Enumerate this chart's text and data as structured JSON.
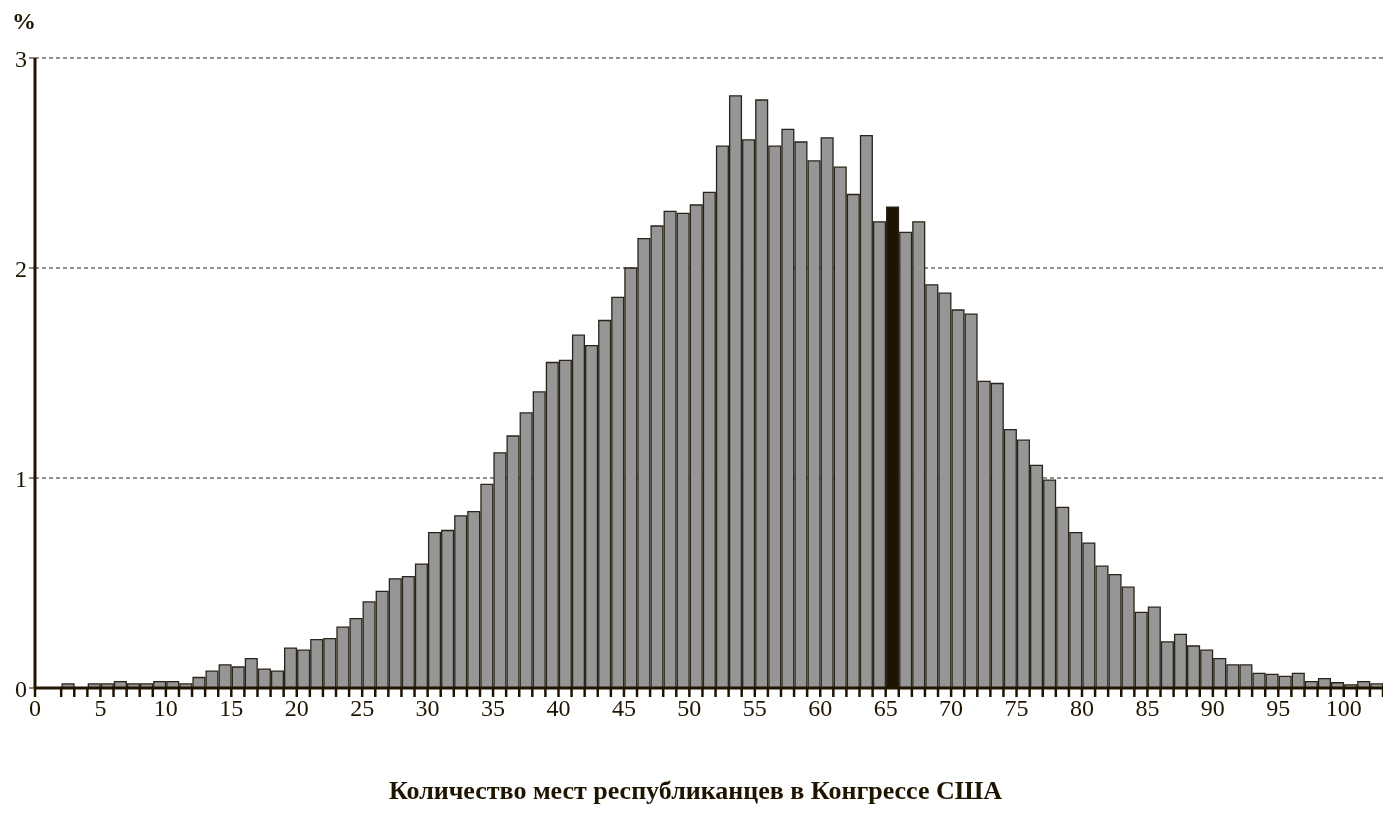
{
  "chart_data": {
    "type": "histogram",
    "xlabel": "Количество мест республиканцев в Конгрессе США",
    "ylabel": "%",
    "bins": [
      2,
      3,
      4,
      5,
      6,
      7,
      8,
      9,
      10,
      11,
      12,
      13,
      14,
      15,
      16,
      17,
      18,
      19,
      20,
      21,
      22,
      23,
      24,
      25,
      26,
      27,
      28,
      29,
      30,
      31,
      32,
      33,
      34,
      35,
      36,
      37,
      38,
      39,
      40,
      41,
      42,
      43,
      44,
      45,
      46,
      47,
      48,
      49,
      50,
      51,
      52,
      53,
      54,
      55,
      56,
      57,
      58,
      59,
      60,
      61,
      62,
      63,
      64,
      65,
      66,
      67,
      68,
      69,
      70,
      71,
      72,
      73,
      74,
      75,
      76,
      77,
      78,
      79,
      80,
      81,
      82,
      83,
      84,
      85,
      86,
      87,
      88,
      89,
      90,
      91,
      92,
      93,
      94,
      95,
      96,
      97,
      98,
      99,
      100,
      101,
      102,
      103
    ],
    "values": [
      0.02,
      0,
      0.02,
      0.02,
      0.03,
      0.02,
      0.02,
      0.03,
      0.03,
      0.02,
      0.05,
      0.08,
      0.11,
      0.1,
      0.14,
      0.09,
      0.08,
      0.19,
      0.18,
      0.23,
      0.235,
      0.29,
      0.33,
      0.41,
      0.46,
      0.52,
      0.53,
      0.59,
      0.74,
      0.75,
      0.82,
      0.84,
      0.97,
      1.12,
      1.2,
      1.31,
      1.41,
      1.55,
      1.56,
      1.68,
      1.63,
      1.75,
      1.86,
      2.0,
      2.14,
      2.2,
      2.27,
      2.26,
      2.3,
      2.36,
      2.58,
      2.82,
      2.61,
      2.8,
      2.58,
      2.66,
      2.6,
      2.51,
      2.62,
      2.48,
      2.35,
      2.63,
      2.22,
      2.29,
      2.17,
      2.22,
      1.92,
      1.88,
      1.8,
      1.78,
      1.46,
      1.45,
      1.23,
      1.18,
      1.06,
      0.99,
      0.86,
      0.74,
      0.69,
      0.58,
      0.54,
      0.48,
      0.36,
      0.385,
      0.22,
      0.255,
      0.2,
      0.18,
      0.14,
      0.11,
      0.11,
      0.07,
      0.065,
      0.055,
      0.07,
      0.03,
      0.045,
      0.025,
      0.015,
      0.03,
      0.02
    ],
    "colors": [
      "#969696",
      "#969696",
      "#969696",
      "#969696",
      "#969696",
      "#969696",
      "#969696",
      "#969696",
      "#969696",
      "#969696",
      "#969696",
      "#969696",
      "#969696",
      "#969696",
      "#969696",
      "#969696",
      "#969696",
      "#969696",
      "#969696",
      "#969696",
      "#969696",
      "#969696",
      "#969696",
      "#969696",
      "#969696",
      "#969696",
      "#969696",
      "#969696",
      "#969696",
      "#969696",
      "#969696",
      "#969696",
      "#969696",
      "#969696",
      "#969696",
      "#969696",
      "#969696",
      "#969696",
      "#969696",
      "#969696",
      "#969696",
      "#969696",
      "#969696",
      "#969696",
      "#969696",
      "#969696",
      "#969696",
      "#969696",
      "#969696",
      "#969696",
      "#969696",
      "#969696",
      "#969696",
      "#969696",
      "#969696",
      "#969696",
      "#969696",
      "#969696",
      "#969696",
      "#969696",
      "#969696",
      "#969696",
      "#969696",
      "#1f1400",
      "#969696",
      "#969696",
      "#969696",
      "#969696",
      "#969696",
      "#969696",
      "#969696",
      "#969696",
      "#969696",
      "#969696",
      "#969696",
      "#969696",
      "#969696",
      "#969696",
      "#969696",
      "#969696",
      "#969696",
      "#969696",
      "#969696",
      "#969696",
      "#969696",
      "#969696",
      "#969696",
      "#969696",
      "#969696",
      "#969696",
      "#969696",
      "#969696",
      "#969696",
      "#969696",
      "#969696",
      "#969696",
      "#969696",
      "#969696",
      "#969696",
      "#969696",
      "#969696"
    ],
    "xlim": [
      0,
      103
    ],
    "xticks": [
      0,
      {
        "value": 2,
        "label": null
      },
      {
        "value": 3,
        "label": null
      },
      {
        "value": 4,
        "label": null
      },
      5,
      {
        "value": 6,
        "label": null
      },
      {
        "value": 7,
        "label": null
      },
      {
        "value": 8,
        "label": null
      },
      {
        "value": 9,
        "label": null
      },
      10,
      {
        "value": 11,
        "label": null
      },
      {
        "value": 12,
        "label": null
      },
      {
        "value": 13,
        "label": null
      },
      {
        "value": 14,
        "label": null
      },
      15,
      {
        "value": 16,
        "label": null
      },
      {
        "value": 17,
        "label": null
      },
      {
        "value": 18,
        "label": null
      },
      {
        "value": 19,
        "label": null
      },
      20,
      {
        "value": 21,
        "label": null
      },
      {
        "value": 22,
        "label": null
      },
      {
        "value": 23,
        "label": null
      },
      {
        "value": 24,
        "label": null
      },
      25,
      {
        "value": 26,
        "label": null
      },
      {
        "value": 27,
        "label": null
      },
      {
        "value": 28,
        "label": null
      },
      {
        "value": 29,
        "label": null
      },
      30,
      {
        "value": 31,
        "label": null
      },
      {
        "value": 32,
        "label": null
      },
      {
        "value": 33,
        "label": null
      },
      {
        "value": 34,
        "label": null
      },
      35,
      {
        "value": 36,
        "label": null
      },
      {
        "value": 37,
        "label": null
      },
      {
        "value": 38,
        "label": null
      },
      {
        "value": 39,
        "label": null
      },
      40,
      {
        "value": 41,
        "label": null
      },
      {
        "value": 42,
        "label": null
      },
      {
        "value": 43,
        "label": null
      },
      {
        "value": 44,
        "label": null
      },
      45,
      {
        "value": 46,
        "label": null
      },
      {
        "value": 47,
        "label": null
      },
      {
        "value": 48,
        "label": null
      },
      {
        "value": 49,
        "label": null
      },
      50,
      {
        "value": 51,
        "label": null
      },
      {
        "value": 52,
        "label": null
      },
      {
        "value": 53,
        "label": null
      },
      {
        "value": 54,
        "label": null
      },
      55,
      {
        "value": 56,
        "label": null
      },
      {
        "value": 57,
        "label": null
      },
      {
        "value": 58,
        "label": null
      },
      {
        "value": 59,
        "label": null
      },
      60,
      {
        "value": 61,
        "label": null
      },
      {
        "value": 62,
        "label": null
      },
      {
        "value": 63,
        "label": null
      },
      {
        "value": 64,
        "label": null
      },
      65,
      {
        "value": 66,
        "label": null
      },
      {
        "value": 67,
        "label": null
      },
      {
        "value": 68,
        "label": null
      },
      {
        "value": 69,
        "label": null
      },
      70,
      {
        "value": 71,
        "label": null
      },
      {
        "value": 72,
        "label": null
      },
      {
        "value": 73,
        "label": null
      },
      {
        "value": 74,
        "label": null
      },
      75,
      {
        "value": 76,
        "label": null
      },
      {
        "value": 77,
        "label": null
      },
      {
        "value": 78,
        "label": null
      },
      {
        "value": 79,
        "label": null
      },
      80,
      {
        "value": 81,
        "label": null
      },
      {
        "value": 82,
        "label": null
      },
      {
        "value": 83,
        "label": null
      },
      {
        "value": 84,
        "label": null
      },
      85,
      {
        "value": 86,
        "label": null
      },
      {
        "value": 87,
        "label": null
      },
      {
        "value": 88,
        "label": null
      },
      {
        "value": 89,
        "label": null
      },
      90,
      {
        "value": 91,
        "label": null
      },
      {
        "value": 92,
        "label": null
      },
      {
        "value": 93,
        "label": null
      },
      {
        "value": 94,
        "label": null
      },
      95,
      {
        "value": 96,
        "label": null
      },
      {
        "value": 97,
        "label": null
      },
      {
        "value": 98,
        "label": null
      },
      {
        "value": 99,
        "label": null
      },
      100,
      {
        "value": 101,
        "label": null
      },
      {
        "value": 102,
        "label": null
      },
      {
        "value": 103,
        "label": null
      }
    ],
    "ylim": [
      0,
      3
    ],
    "yticks": [
      0,
      1,
      2,
      3
    ],
    "grid": "y"
  }
}
